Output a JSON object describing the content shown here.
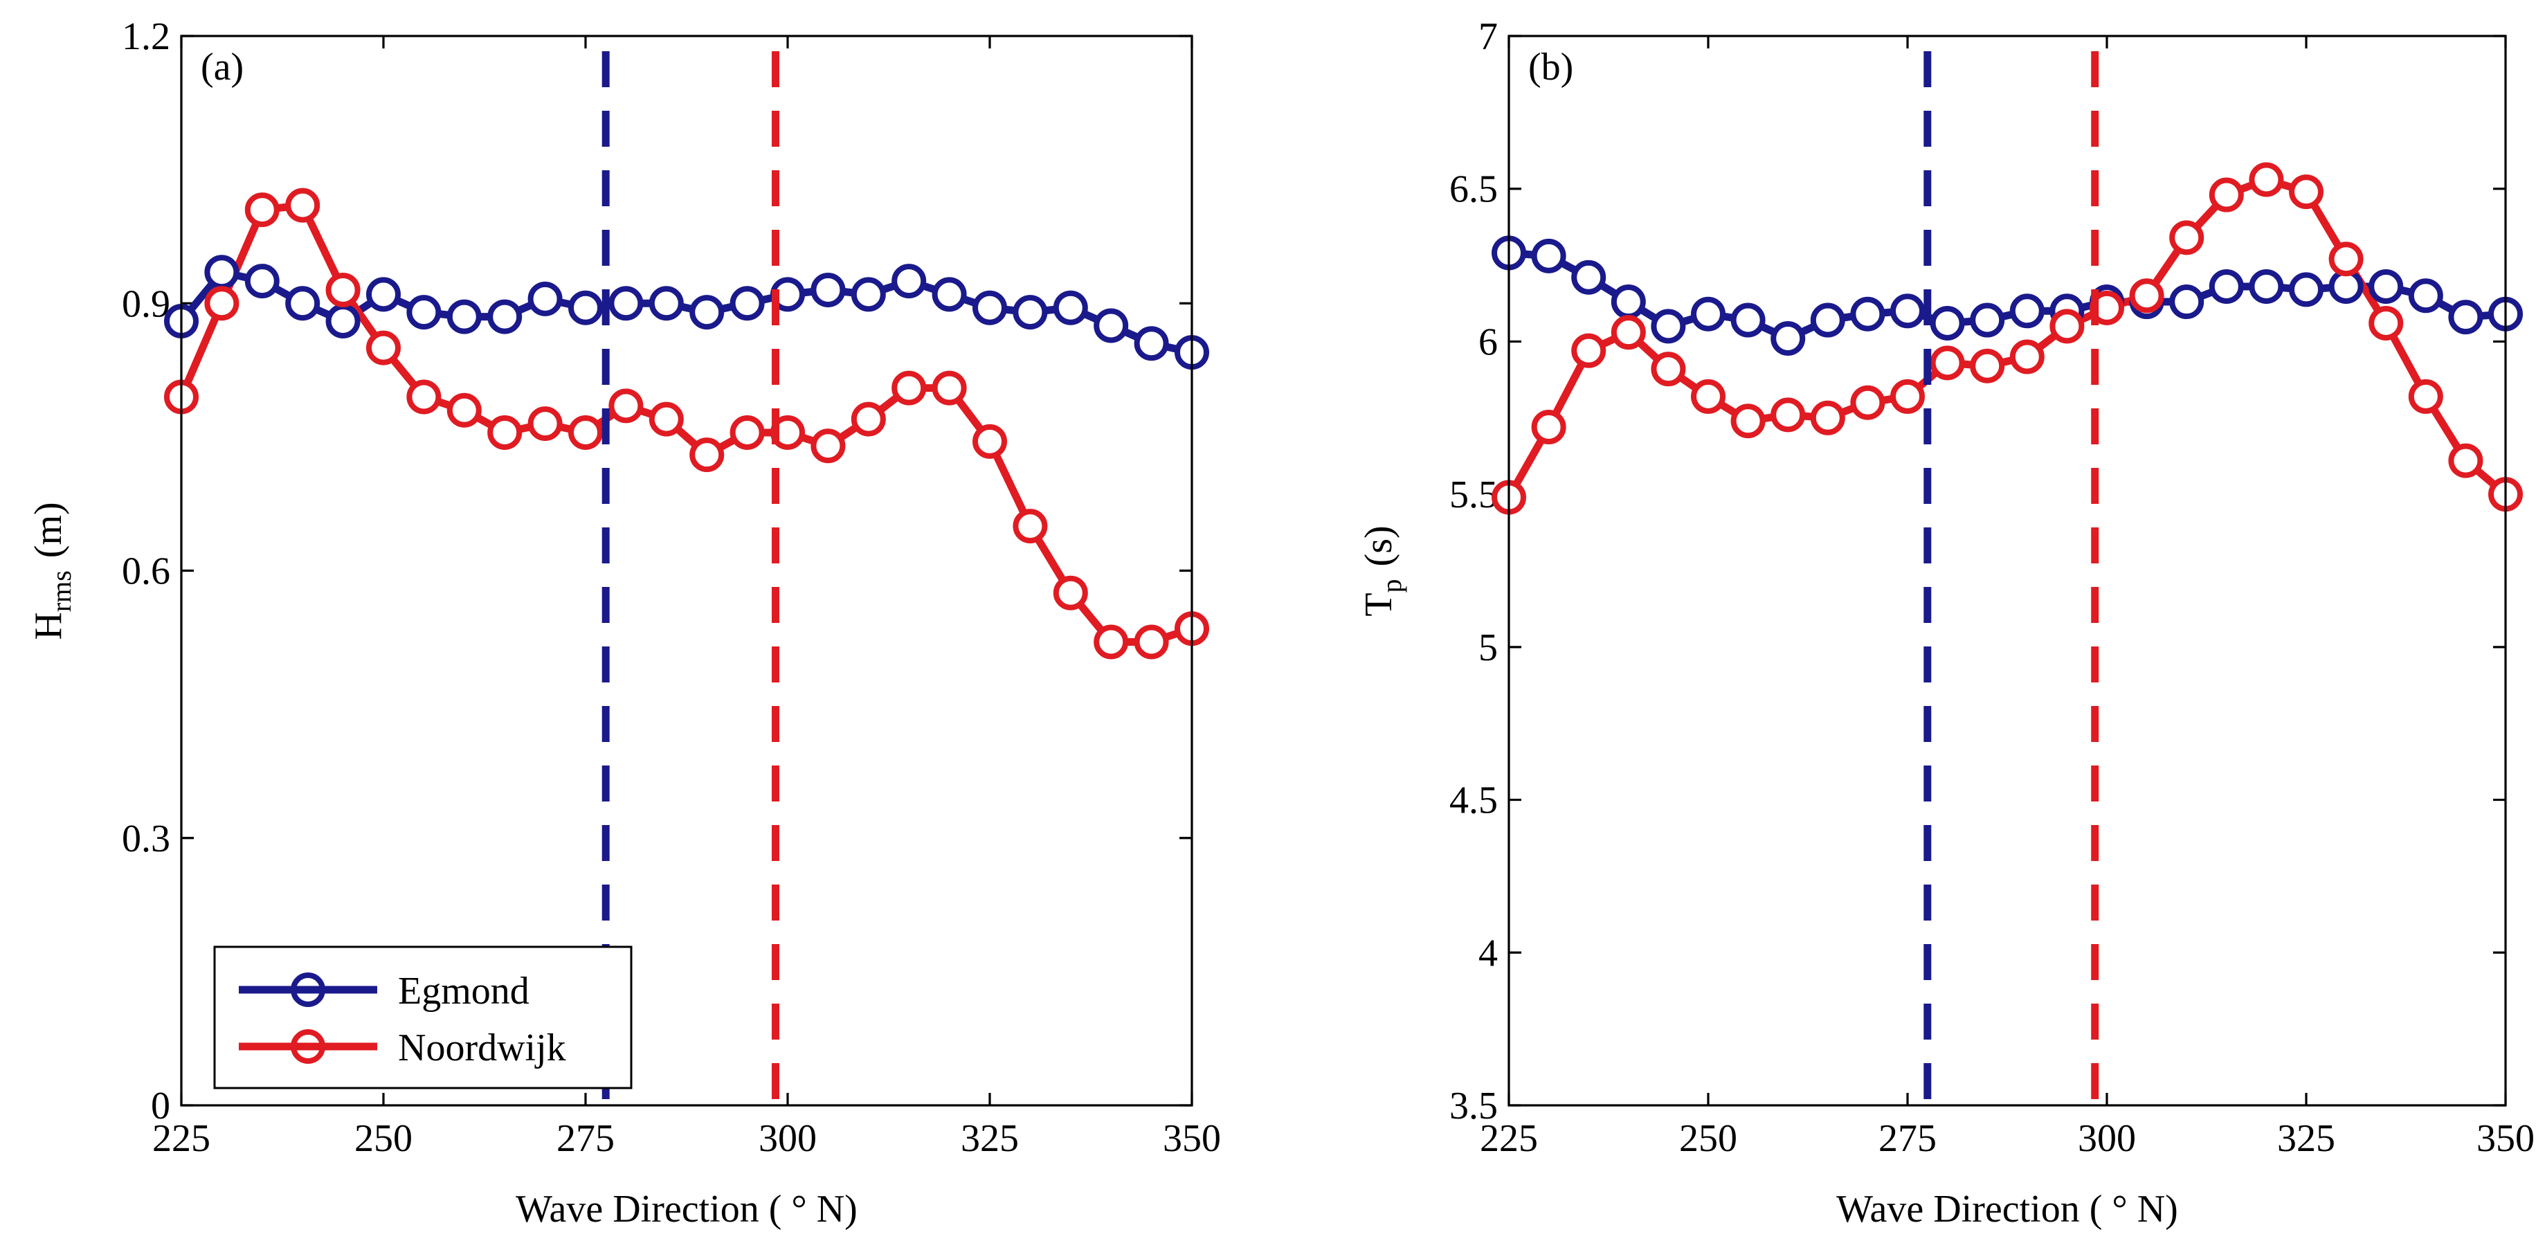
{
  "colors": {
    "egmond": "#1a1a8c",
    "noordwijk": "#e01b22"
  },
  "legend": {
    "egmond": "Egmond",
    "noordwijk": "Noordwijk"
  },
  "chart_data": [
    {
      "type": "line",
      "panel_tag": "(a)",
      "ylabel_main": "H",
      "ylabel_sub": "rms",
      "ylabel_unit": "(m)",
      "xlabel": "Wave Direction ( ° N)",
      "xlim": [
        225,
        350
      ],
      "ylim": [
        0,
        1.2
      ],
      "xticks": [
        225,
        250,
        275,
        300,
        325,
        350
      ],
      "yticks": [
        0,
        0.3,
        0.6,
        0.9,
        1.2
      ],
      "ytick_labels": [
        "0",
        "0.3",
        "0.6",
        "0.9",
        "1.2"
      ],
      "x": [
        225,
        230,
        235,
        240,
        245,
        250,
        255,
        260,
        265,
        270,
        275,
        280,
        285,
        290,
        295,
        300,
        305,
        310,
        315,
        320,
        325,
        330,
        335,
        340,
        345,
        350
      ],
      "series": [
        {
          "name": "Egmond",
          "color_key": "egmond",
          "values": [
            0.88,
            0.935,
            0.925,
            0.9,
            0.88,
            0.91,
            0.89,
            0.885,
            0.885,
            0.905,
            0.895,
            0.9,
            0.9,
            0.89,
            0.9,
            0.91,
            0.915,
            0.91,
            0.925,
            0.91,
            0.895,
            0.89,
            0.895,
            0.875,
            0.855,
            0.845
          ]
        },
        {
          "name": "Noordwijk",
          "color_key": "noordwijk",
          "values": [
            0.795,
            0.9,
            1.005,
            1.01,
            0.915,
            0.85,
            0.795,
            0.78,
            0.755,
            0.765,
            0.755,
            0.785,
            0.77,
            0.73,
            0.755,
            0.755,
            0.74,
            0.77,
            0.805,
            0.805,
            0.745,
            0.65,
            0.575,
            0.52,
            0.52,
            0.535
          ]
        }
      ],
      "vlines": [
        {
          "x": 277.5,
          "color_key": "egmond"
        },
        {
          "x": 298.5,
          "color_key": "noordwijk"
        }
      ]
    },
    {
      "type": "line",
      "panel_tag": "(b)",
      "ylabel_main": "T",
      "ylabel_sub": "p",
      "ylabel_unit": "(s)",
      "xlabel": "Wave Direction ( ° N)",
      "xlim": [
        225,
        350
      ],
      "ylim": [
        3.5,
        7
      ],
      "xticks": [
        225,
        250,
        275,
        300,
        325,
        350
      ],
      "yticks": [
        3.5,
        4,
        4.5,
        5,
        5.5,
        6,
        6.5,
        7
      ],
      "ytick_labels": [
        "3.5",
        "4",
        "4.5",
        "5",
        "5.5",
        "6",
        "6.5",
        "7"
      ],
      "x": [
        225,
        230,
        235,
        240,
        245,
        250,
        255,
        260,
        265,
        270,
        275,
        280,
        285,
        290,
        295,
        300,
        305,
        310,
        315,
        320,
        325,
        330,
        335,
        340,
        345,
        350
      ],
      "series": [
        {
          "name": "Egmond",
          "color_key": "egmond",
          "values": [
            6.29,
            6.28,
            6.21,
            6.13,
            6.05,
            6.09,
            6.07,
            6.01,
            6.07,
            6.09,
            6.1,
            6.06,
            6.07,
            6.1,
            6.1,
            6.13,
            6.13,
            6.13,
            6.18,
            6.18,
            6.17,
            6.18,
            6.18,
            6.15,
            6.08,
            6.09
          ]
        },
        {
          "name": "Noordwijk",
          "color_key": "noordwijk",
          "values": [
            5.49,
            5.72,
            5.97,
            6.03,
            5.91,
            5.82,
            5.74,
            5.76,
            5.75,
            5.8,
            5.82,
            5.93,
            5.92,
            5.95,
            6.05,
            6.11,
            6.15,
            6.34,
            6.48,
            6.53,
            6.49,
            6.27,
            6.06,
            5.82,
            5.61,
            5.5
          ]
        }
      ],
      "vlines": [
        {
          "x": 277.5,
          "color_key": "egmond"
        },
        {
          "x": 298.5,
          "color_key": "noordwijk"
        }
      ]
    }
  ]
}
